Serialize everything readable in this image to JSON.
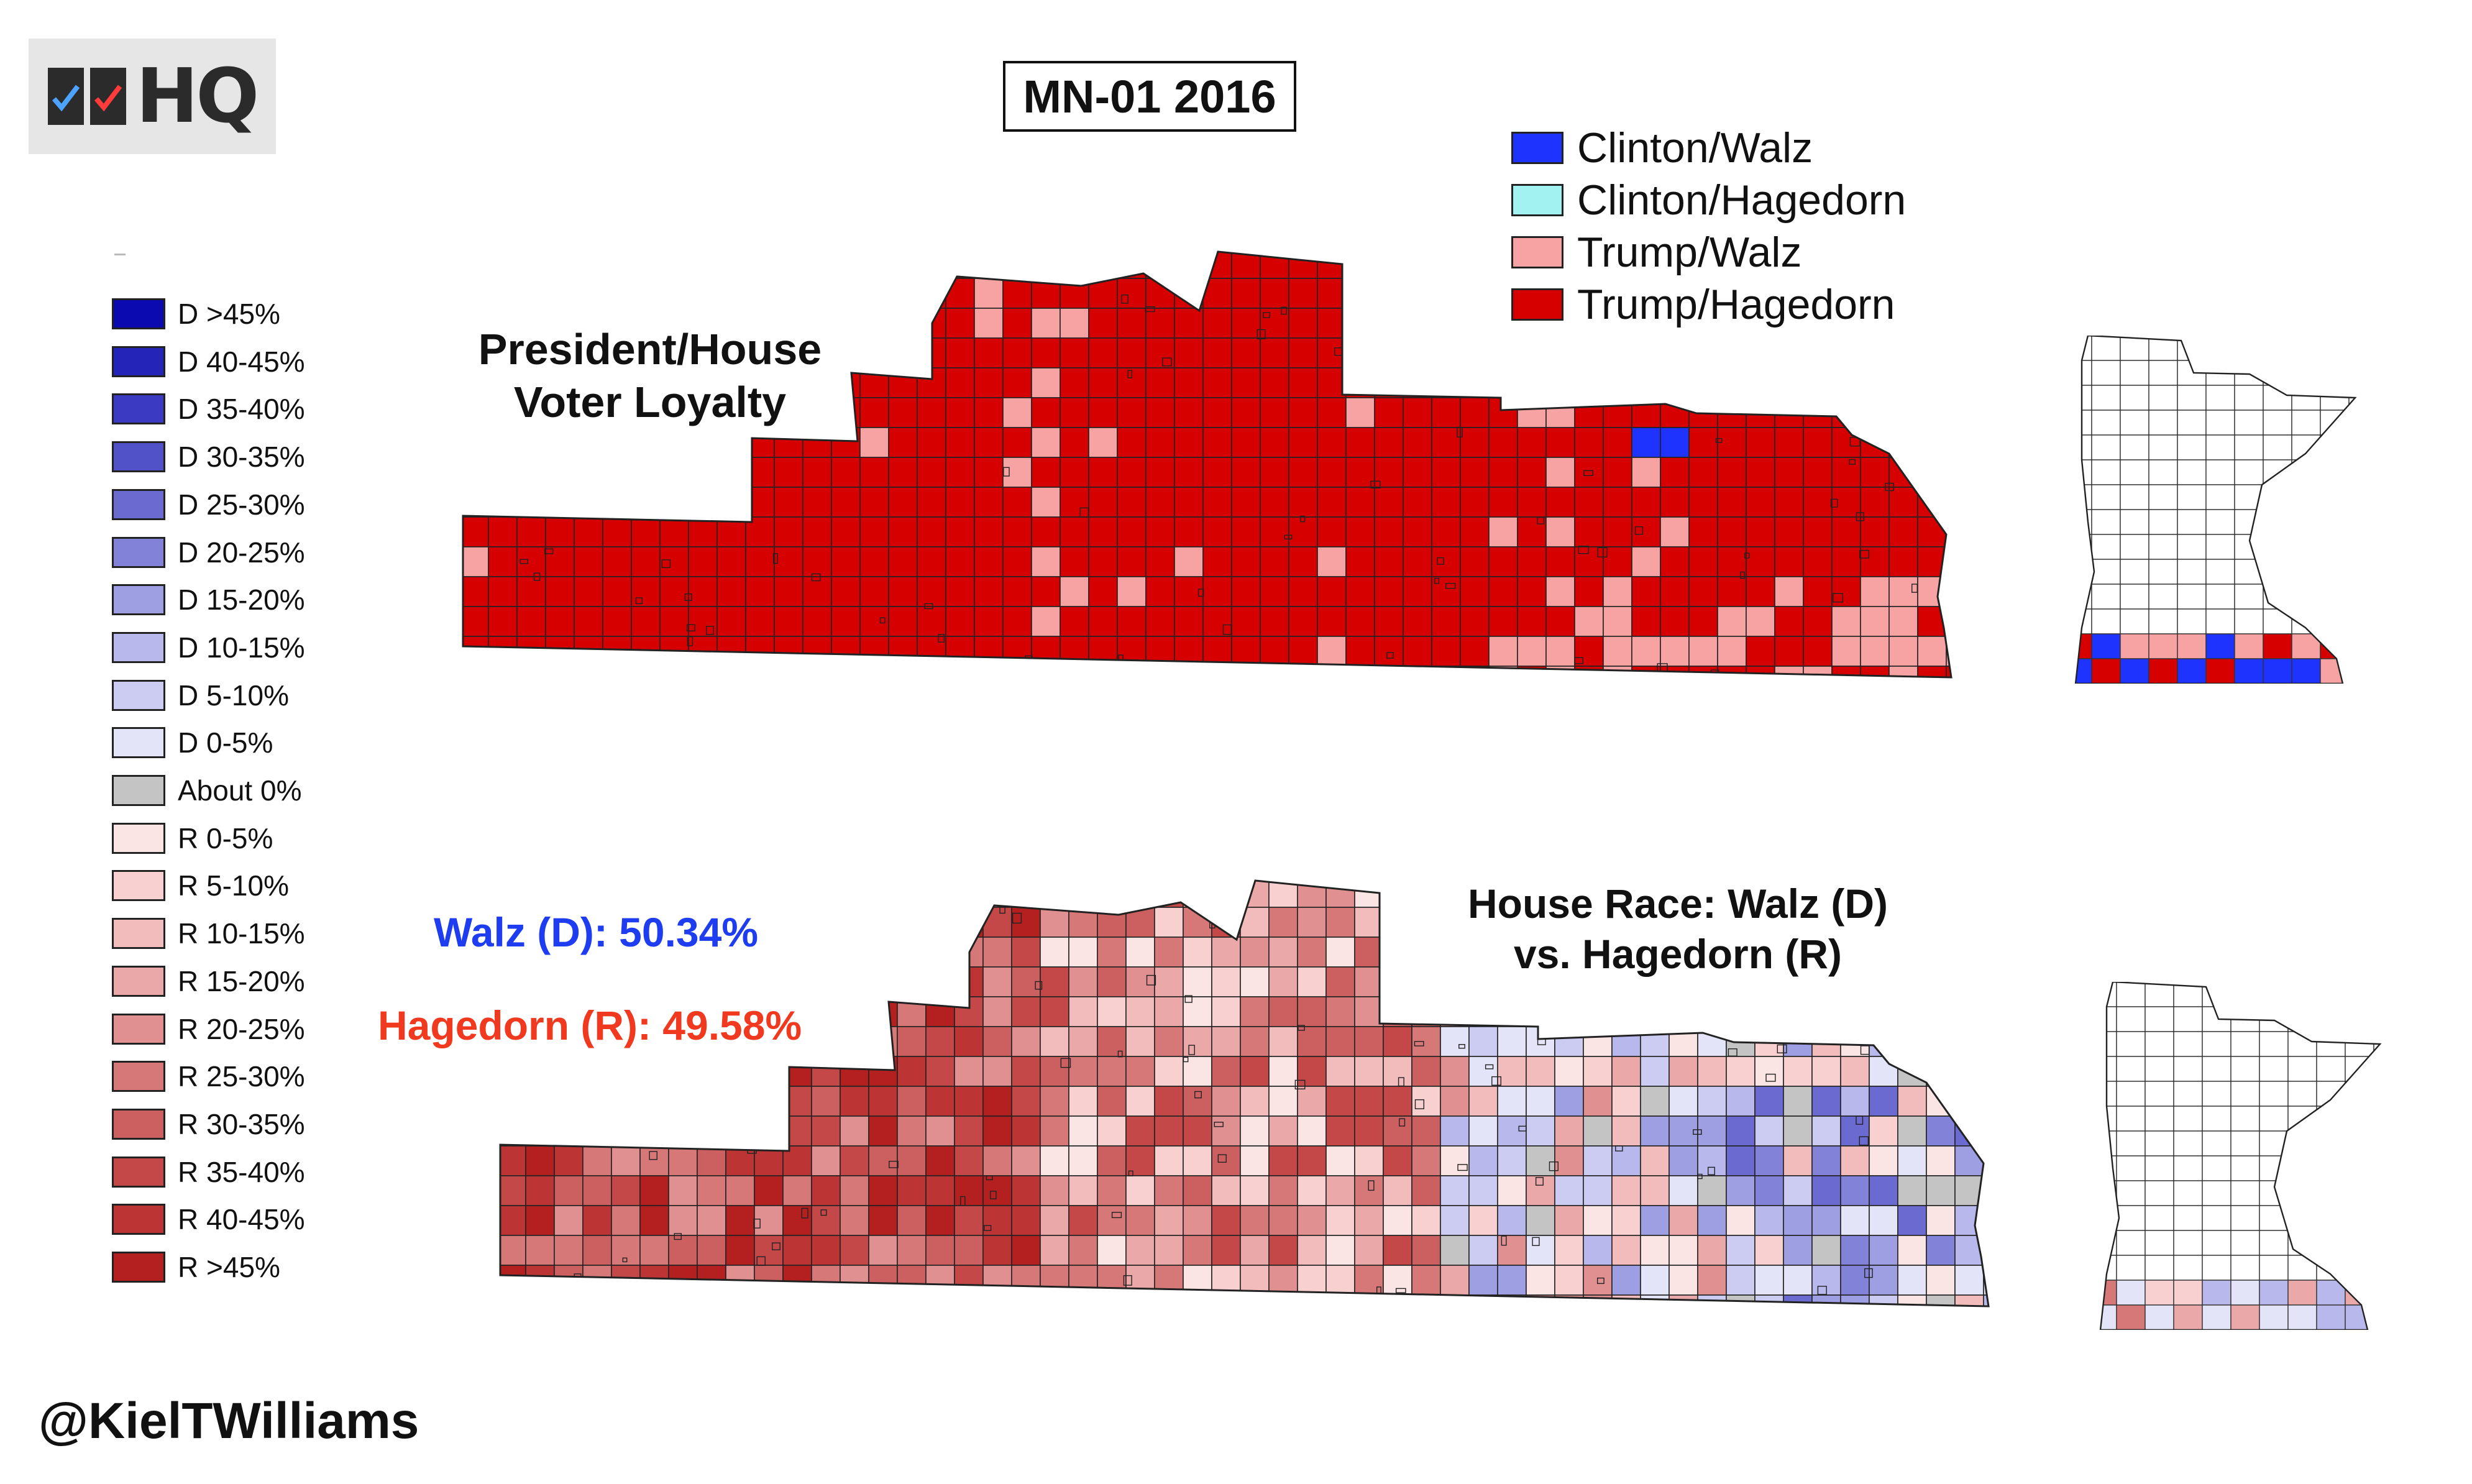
{
  "logo": {
    "text": "HQ"
  },
  "title": "MN-01 2016",
  "top_map": {
    "subtitle_line1": "President/House",
    "subtitle_line2": "Voter Loyalty",
    "legend": [
      {
        "label": "Clinton/Walz",
        "color": "#1f33ff"
      },
      {
        "label": "Clinton/Hagedorn",
        "color": "#a3f2f2"
      },
      {
        "label": "Trump/Walz",
        "color": "#f7a3a3"
      },
      {
        "label": "Trump/Hagedorn",
        "color": "#d60000"
      }
    ]
  },
  "bottom_map": {
    "subtitle_line1": "House Race: Walz (D)",
    "subtitle_line2": "vs. Hagedorn (R)",
    "walz_result": "Walz (D): 50.34%",
    "hagedorn_result": "Hagedorn (R): 49.58%"
  },
  "margin_legend": [
    {
      "label": "D >45%",
      "color": "#0a0ab0"
    },
    {
      "label": "D 40-45%",
      "color": "#2424b8"
    },
    {
      "label": "D 35-40%",
      "color": "#3a3ac2"
    },
    {
      "label": "D 30-35%",
      "color": "#5252c8"
    },
    {
      "label": "D 25-30%",
      "color": "#6a6ad0"
    },
    {
      "label": "D 20-25%",
      "color": "#8282d8"
    },
    {
      "label": "D 15-20%",
      "color": "#9e9ee2"
    },
    {
      "label": "D 10-15%",
      "color": "#b8b8ec"
    },
    {
      "label": "D 5-10%",
      "color": "#ccccf2"
    },
    {
      "label": "D 0-5%",
      "color": "#e4e4f8"
    },
    {
      "label": "About 0%",
      "color": "#c4c4c4"
    },
    {
      "label": "R 0-5%",
      "color": "#fbe4e4"
    },
    {
      "label": "R 5-10%",
      "color": "#f8d0d0"
    },
    {
      "label": "R 10-15%",
      "color": "#f2bcbc"
    },
    {
      "label": "R 15-20%",
      "color": "#eaa8a8"
    },
    {
      "label": "R 20-25%",
      "color": "#e09090"
    },
    {
      "label": "R 25-30%",
      "color": "#d67878"
    },
    {
      "label": "R 30-35%",
      "color": "#cc6060"
    },
    {
      "label": "R 35-40%",
      "color": "#c44848"
    },
    {
      "label": "R 40-45%",
      "color": "#bc3434"
    },
    {
      "label": "R >45%",
      "color": "#b42020"
    }
  ],
  "credit": "@KielTWilliams"
}
